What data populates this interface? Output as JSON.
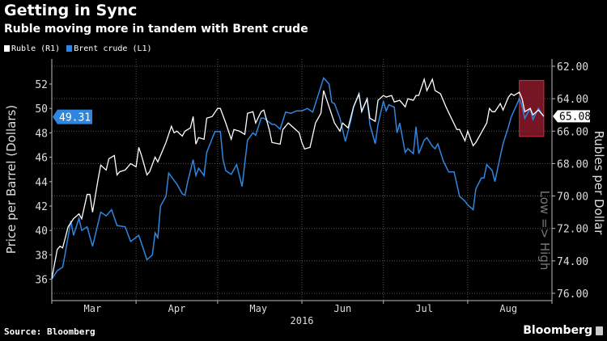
{
  "header": {
    "title": "Getting in Sync",
    "subtitle": "Ruble moving more in tandem with Brent crude"
  },
  "footer": {
    "source": "Source: Bloomberg",
    "brand": "Bloomberg"
  },
  "colors": {
    "ruble": "#ffffff",
    "brent": "#2f86e0",
    "highlight": "#8b1a2b",
    "background": "#000000"
  },
  "chart_data": {
    "type": "line",
    "title": "Getting in Sync",
    "subtitle": "Ruble moving more in tandem with Brent crude",
    "x_unit": "days since 2016-03-01",
    "xlabel": "2016",
    "x_ticks": [
      {
        "label": "Mar",
        "day": 15
      },
      {
        "label": "Apr",
        "day": 46
      },
      {
        "label": "May",
        "day": 76
      },
      {
        "label": "Jun",
        "day": 107
      },
      {
        "label": "Jul",
        "day": 137
      },
      {
        "label": "Aug",
        "day": 168
      }
    ],
    "x_boundaries": [
      0,
      31,
      61,
      92,
      122,
      153,
      184
    ],
    "left_axis": {
      "label": "Price per Barrel (Dollars)",
      "ticks": [
        36,
        38,
        40,
        42,
        44,
        46,
        48,
        50,
        52
      ],
      "range": [
        34.8,
        53.7
      ]
    },
    "right_axis": {
      "label": "Rubles per Dollar",
      "note": "Low => High",
      "inverted": true,
      "ticks": [
        "62.00",
        "64.00",
        "66.00",
        "68.00",
        "70.00",
        "72.00",
        "74.00",
        "76.00"
      ],
      "range": [
        61.5,
        76.5
      ]
    },
    "legend": [
      {
        "name": "Ruble (R1)"
      },
      {
        "name": "Brent crude (L1)"
      }
    ],
    "legend_position": "top-left",
    "grid": true,
    "last_value_tags": {
      "brent": "49.31",
      "ruble": "65.08"
    },
    "highlight_region": {
      "day_range": [
        172,
        181
      ],
      "left_value_range": [
        47.7,
        52.3
      ]
    },
    "series": [
      {
        "name": "Ruble (R1)",
        "axis": "right",
        "points": [
          [
            0,
            75.1
          ],
          [
            2,
            73.3
          ],
          [
            3,
            73.1
          ],
          [
            4,
            73.2
          ],
          [
            6,
            71.9
          ],
          [
            8,
            71.4
          ],
          [
            10,
            71.1
          ],
          [
            11,
            71.4
          ],
          [
            13,
            69.9
          ],
          [
            14,
            69.9
          ],
          [
            15,
            71
          ],
          [
            17,
            69
          ],
          [
            18,
            68.1
          ],
          [
            20,
            68.4
          ],
          [
            21,
            67.7
          ],
          [
            23,
            67.5
          ],
          [
            24,
            68.7
          ],
          [
            25,
            68.5
          ],
          [
            27,
            68.4
          ],
          [
            29,
            68
          ],
          [
            31,
            68.2
          ],
          [
            32,
            67
          ],
          [
            33,
            67.5
          ],
          [
            35,
            68.7
          ],
          [
            36,
            68.5
          ],
          [
            38,
            67.6
          ],
          [
            39,
            67.9
          ],
          [
            41,
            67.1
          ],
          [
            42,
            66.7
          ],
          [
            44,
            65.7
          ],
          [
            45,
            66.1
          ],
          [
            46,
            66
          ],
          [
            48,
            66.3
          ],
          [
            49,
            66
          ],
          [
            51,
            65.8
          ],
          [
            52,
            65.1
          ],
          [
            53,
            66.8
          ],
          [
            54,
            66.4
          ],
          [
            56,
            66.5
          ],
          [
            57,
            65.2
          ],
          [
            59,
            65.1
          ],
          [
            61,
            64.6
          ],
          [
            62,
            64.6
          ],
          [
            64,
            65.5
          ],
          [
            66,
            66.5
          ],
          [
            67,
            65.9
          ],
          [
            69,
            66
          ],
          [
            71,
            66.2
          ],
          [
            72,
            64.9
          ],
          [
            74,
            64.8
          ],
          [
            75,
            65.5
          ],
          [
            77,
            64.8
          ],
          [
            78,
            64.7
          ],
          [
            80,
            65.9
          ],
          [
            81,
            66.7
          ],
          [
            84,
            66.8
          ],
          [
            85,
            65.9
          ],
          [
            87,
            65.5
          ],
          [
            89,
            65.8
          ],
          [
            91,
            66.1
          ],
          [
            92,
            66.7
          ],
          [
            93,
            67.1
          ],
          [
            95,
            67
          ],
          [
            97,
            65.5
          ],
          [
            99,
            64.9
          ],
          [
            100,
            63.5
          ],
          [
            102,
            64.5
          ],
          [
            104,
            65.5
          ],
          [
            106,
            66
          ],
          [
            107,
            65.5
          ],
          [
            109,
            65.8
          ],
          [
            111,
            64.5
          ],
          [
            113,
            63.7
          ],
          [
            114,
            64.8
          ],
          [
            116,
            64
          ],
          [
            117,
            65.2
          ],
          [
            119,
            65.4
          ],
          [
            120,
            64.1
          ],
          [
            122,
            63.8
          ],
          [
            123,
            63.9
          ],
          [
            125,
            63.8
          ],
          [
            126,
            64.2
          ],
          [
            128,
            64.1
          ],
          [
            130,
            64.5
          ],
          [
            131,
            64
          ],
          [
            133,
            64.1
          ],
          [
            134,
            63.8
          ],
          [
            135,
            63.8
          ],
          [
            137,
            62.8
          ],
          [
            138,
            63.5
          ],
          [
            140,
            62.8
          ],
          [
            141,
            63.5
          ],
          [
            143,
            63.7
          ],
          [
            145,
            64.5
          ],
          [
            147,
            65.2
          ],
          [
            149,
            65.9
          ],
          [
            150,
            65.9
          ],
          [
            152,
            66.6
          ],
          [
            153,
            66
          ],
          [
            155,
            66.9
          ],
          [
            156,
            66.7
          ],
          [
            158,
            66.1
          ],
          [
            160,
            65.5
          ],
          [
            161,
            64.6
          ],
          [
            162,
            64.8
          ],
          [
            163,
            64.8
          ],
          [
            165,
            64.3
          ],
          [
            166,
            64.7
          ],
          [
            168,
            63.9
          ],
          [
            169,
            63.7
          ],
          [
            170,
            63.8
          ],
          [
            172,
            63.6
          ],
          [
            173,
            64
          ],
          [
            174,
            64.8
          ],
          [
            176,
            64.6
          ],
          [
            177,
            65
          ],
          [
            179,
            64.7
          ],
          [
            181,
            65.08
          ]
        ]
      },
      {
        "name": "Brent crude (L1)",
        "axis": "left",
        "points": [
          [
            0,
            36
          ],
          [
            2,
            36.7
          ],
          [
            4,
            37
          ],
          [
            5,
            38.2
          ],
          [
            7,
            40.8
          ],
          [
            8,
            39.6
          ],
          [
            10,
            41
          ],
          [
            11,
            40
          ],
          [
            13,
            40.3
          ],
          [
            15,
            38.7
          ],
          [
            18,
            41.5
          ],
          [
            20,
            41.2
          ],
          [
            22,
            41.7
          ],
          [
            24,
            40.4
          ],
          [
            27,
            40.3
          ],
          [
            29,
            39.1
          ],
          [
            32,
            39.6
          ],
          [
            35,
            37.6
          ],
          [
            37,
            38
          ],
          [
            38,
            39.8
          ],
          [
            39,
            39.4
          ],
          [
            40,
            42
          ],
          [
            42,
            42.8
          ],
          [
            43,
            44.7
          ],
          [
            46,
            43.8
          ],
          [
            48,
            43
          ],
          [
            49,
            42.9
          ],
          [
            50,
            44
          ],
          [
            52,
            45.8
          ],
          [
            53,
            44.5
          ],
          [
            54,
            45.1
          ],
          [
            56,
            44.5
          ],
          [
            57,
            46.4
          ],
          [
            60,
            48.1
          ],
          [
            62,
            48.1
          ],
          [
            63,
            45.8
          ],
          [
            64,
            44.9
          ],
          [
            66,
            44.6
          ],
          [
            68,
            45.4
          ],
          [
            70,
            43.6
          ],
          [
            72,
            47.4
          ],
          [
            74,
            48
          ],
          [
            75,
            47.8
          ],
          [
            77,
            49.2
          ],
          [
            78,
            49.2
          ],
          [
            81,
            48.7
          ],
          [
            82,
            48.7
          ],
          [
            84,
            48.3
          ],
          [
            86,
            49.7
          ],
          [
            88,
            49.6
          ],
          [
            90,
            49.8
          ],
          [
            92,
            49.8
          ],
          [
            94,
            50
          ],
          [
            96,
            49.7
          ],
          [
            98,
            51.1
          ],
          [
            100,
            52.5
          ],
          [
            102,
            52
          ],
          [
            103,
            50.5
          ],
          [
            104,
            50.4
          ],
          [
            106,
            49.2
          ],
          [
            108,
            47.3
          ],
          [
            110,
            49
          ],
          [
            111,
            50.1
          ],
          [
            113,
            51.2
          ],
          [
            114,
            49.8
          ],
          [
            116,
            50.8
          ],
          [
            117,
            48.7
          ],
          [
            119,
            47.1
          ],
          [
            120,
            48.7
          ],
          [
            122,
            50.6
          ],
          [
            123,
            49.8
          ],
          [
            124,
            50.3
          ],
          [
            126,
            50.1
          ],
          [
            127,
            48
          ],
          [
            128,
            48.8
          ],
          [
            130,
            46.4
          ],
          [
            131,
            46.7
          ],
          [
            133,
            46.3
          ],
          [
            134,
            48.5
          ],
          [
            135,
            46.3
          ],
          [
            137,
            47.4
          ],
          [
            138,
            47.6
          ],
          [
            140,
            46.9
          ],
          [
            141,
            46.7
          ],
          [
            142,
            47.1
          ],
          [
            144,
            45.7
          ],
          [
            146,
            44.8
          ],
          [
            148,
            44.8
          ],
          [
            150,
            42.8
          ],
          [
            152,
            42.4
          ],
          [
            153,
            42.1
          ],
          [
            155,
            41.7
          ],
          [
            156,
            43.4
          ],
          [
            158,
            44.3
          ],
          [
            159,
            44.3
          ],
          [
            160,
            45.4
          ],
          [
            162,
            44.9
          ],
          [
            163,
            44
          ],
          [
            165,
            46.1
          ],
          [
            166,
            47.1
          ],
          [
            168,
            48.5
          ],
          [
            169,
            49.3
          ],
          [
            172,
            50.8
          ],
          [
            173,
            50.2
          ],
          [
            174,
            49.2
          ],
          [
            176,
            50
          ],
          [
            177,
            49.1
          ],
          [
            179,
            50
          ],
          [
            181,
            49.31
          ]
        ]
      }
    ]
  }
}
